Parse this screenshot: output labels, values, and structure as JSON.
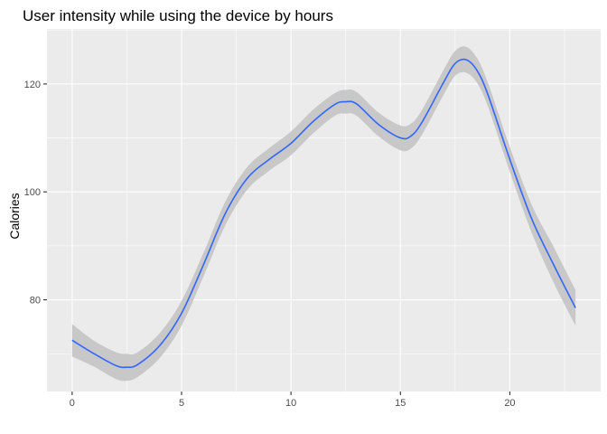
{
  "chart_data": {
    "type": "line",
    "title": "User intensity while using the device by hours",
    "xlabel": "",
    "ylabel": "Calories",
    "xlim": [
      -1.15,
      24.15
    ],
    "ylim": [
      63.0,
      130.2
    ],
    "grid": true,
    "smoothed": true,
    "confidence_band": true,
    "x_ticks": [
      0,
      5,
      10,
      15,
      20
    ],
    "y_ticks": [
      80,
      100,
      120
    ],
    "colors": {
      "background": "#ebebeb",
      "grid_major": "#ffffff",
      "line": "#3366ff",
      "band": "#c8c8c8"
    },
    "series": [
      {
        "x": [
          0,
          1,
          2,
          2.5,
          3,
          4,
          5,
          6,
          7,
          8,
          9,
          10,
          11,
          12,
          12.5,
          13,
          14,
          15,
          15.5,
          16,
          17,
          17.5,
          18,
          18.5,
          19,
          20,
          21,
          22,
          23
        ],
        "values": [
          72.5,
          70.0,
          67.8,
          67.5,
          68.0,
          71.5,
          77.5,
          86.5,
          96.0,
          102.5,
          106.0,
          109.0,
          113.0,
          116.2,
          116.7,
          116.3,
          112.5,
          110.0,
          110.4,
          113.0,
          120.5,
          123.8,
          124.5,
          122.5,
          118.0,
          106.0,
          95.0,
          86.5,
          78.5
        ],
        "lower": [
          69.5,
          67.6,
          65.3,
          65.0,
          65.7,
          69.2,
          75.2,
          84.3,
          93.8,
          100.4,
          103.9,
          106.8,
          110.8,
          114.1,
          114.5,
          114.1,
          110.3,
          107.7,
          108.1,
          110.7,
          118.2,
          121.5,
          122.1,
          120.2,
          115.8,
          103.7,
          92.4,
          83.2,
          75.2
        ],
        "upper": [
          75.5,
          72.4,
          70.3,
          70.0,
          70.3,
          73.8,
          79.8,
          88.7,
          98.2,
          104.6,
          108.1,
          111.2,
          115.2,
          118.3,
          118.9,
          118.5,
          114.7,
          112.3,
          112.7,
          115.3,
          122.8,
          126.1,
          126.9,
          124.8,
          120.2,
          108.3,
          97.6,
          89.8,
          81.8
        ]
      }
    ]
  }
}
